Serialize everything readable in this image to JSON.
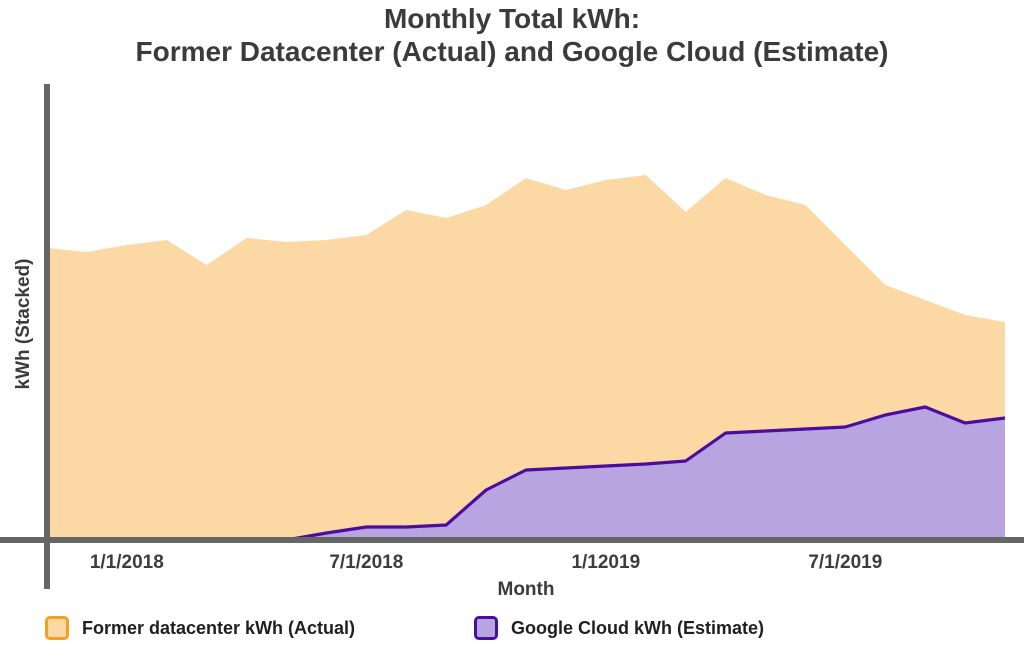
{
  "title": {
    "line1": "Monthly Total kWh:",
    "line2": "Former Datacenter (Actual) and Google Cloud (Estimate)"
  },
  "axes": {
    "y_label": "kWh (Stacked)",
    "x_label": "Month",
    "x_ticks": [
      {
        "label": "1/1/2018",
        "month_index": 2
      },
      {
        "label": "7/1/2018",
        "month_index": 8
      },
      {
        "label": "1/12019",
        "month_index": 14
      },
      {
        "label": "7/1/2019",
        "month_index": 20
      }
    ]
  },
  "legend": [
    {
      "label": "Former datacenter kWh (Actual)",
      "series": "former"
    },
    {
      "label": "Google Cloud kWh (Estimate)",
      "series": "cloud"
    }
  ],
  "colors": {
    "former_fill": "#FCD9A4",
    "former_stroke": "#F59E24",
    "cloud_fill": "#B7A4E0",
    "cloud_stroke": "#4B0D9D",
    "axis": "#666666"
  },
  "chart_data": {
    "type": "area",
    "stacked": true,
    "title": "Monthly Total kWh: Former Datacenter (Actual) and Google Cloud (Estimate)",
    "xlabel": "Month",
    "ylabel": "kWh (Stacked)",
    "grid": false,
    "legend_position": "bottom",
    "ylim": [
      0,
      45000
    ],
    "x": [
      "2017-11",
      "2017-12",
      "2018-01",
      "2018-02",
      "2018-03",
      "2018-04",
      "2018-05",
      "2018-06",
      "2018-07",
      "2018-08",
      "2018-09",
      "2018-10",
      "2018-11",
      "2018-12",
      "2019-01",
      "2019-02",
      "2019-03",
      "2019-04",
      "2019-05",
      "2019-06",
      "2019-07",
      "2019-08",
      "2019-09",
      "2019-10",
      "2019-11"
    ],
    "series": [
      {
        "name": "Google Cloud kWh (Estimate)",
        "values": [
          0,
          0,
          0,
          0,
          0,
          0,
          0,
          700,
          1300,
          1300,
          1500,
          5000,
          7000,
          7200,
          7400,
          7600,
          7900,
          10700,
          10900,
          11100,
          11300,
          12500,
          13300,
          11700,
          12200
        ]
      },
      {
        "name": "Former datacenter kWh (Actual)",
        "values": [
          29200,
          28800,
          29500,
          30000,
          27500,
          30200,
          29800,
          29300,
          29200,
          31700,
          30700,
          28500,
          29200,
          27800,
          28600,
          28900,
          24900,
          25500,
          23600,
          22400,
          18200,
          13000,
          10700,
          10800,
          9600
        ]
      }
    ]
  }
}
